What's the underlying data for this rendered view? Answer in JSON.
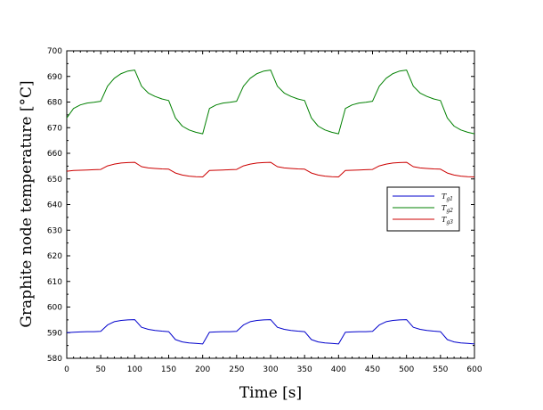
{
  "chart_data": {
    "type": "line",
    "title": "",
    "xlabel": "Time [s]",
    "ylabel_prefix": "Graphite node temperature [",
    "ylabel_unit": "°C",
    "ylabel_suffix": "]",
    "xlim": [
      0,
      600
    ],
    "ylim": [
      580,
      700
    ],
    "xticks": [
      0,
      50,
      100,
      150,
      200,
      250,
      300,
      350,
      400,
      450,
      500,
      550,
      600
    ],
    "yticks": [
      580,
      590,
      600,
      610,
      620,
      630,
      640,
      650,
      660,
      670,
      680,
      690,
      700
    ],
    "grid": false,
    "legend_position": "right",
    "series": [
      {
        "name_main": "T",
        "name_sub": "g1",
        "color": "#0000cc",
        "x": [
          0,
          10,
          20,
          30,
          40,
          50,
          60,
          70,
          80,
          90,
          100,
          110,
          120,
          130,
          140,
          150,
          160,
          170,
          180,
          190,
          200
        ],
        "y": [
          590,
          590.2,
          590.3,
          590.4,
          590.4,
          590.5,
          593,
          594.3,
          594.8,
          595,
          595.1,
          592.1,
          591.3,
          590.9,
          590.6,
          590.4,
          587.3,
          586.4,
          586,
          585.8,
          585.6
        ]
      },
      {
        "name_main": "T",
        "name_sub": "g2",
        "color": "#008000",
        "x": [
          0,
          10,
          20,
          30,
          40,
          50,
          60,
          70,
          80,
          90,
          100,
          110,
          120,
          130,
          140,
          150,
          160,
          170,
          180,
          190,
          200
        ],
        "y": [
          673.8,
          677.5,
          678.9,
          679.6,
          679.9,
          680.3,
          686.2,
          689.3,
          691.1,
          692.1,
          692.5,
          686.2,
          683.5,
          682.2,
          681.2,
          680.6,
          673.8,
          670.6,
          669.1,
          668.2,
          667.6
        ]
      },
      {
        "name_main": "T",
        "name_sub": "g3",
        "color": "#cc0000",
        "x": [
          0,
          10,
          20,
          30,
          40,
          50,
          60,
          70,
          80,
          90,
          100,
          110,
          120,
          130,
          140,
          150,
          160,
          170,
          180,
          190,
          200
        ],
        "y": [
          653,
          653.3,
          653.4,
          653.5,
          653.6,
          653.7,
          655.1,
          655.8,
          656.2,
          656.4,
          656.5,
          654.8,
          654.3,
          654.1,
          653.9,
          653.8,
          652.3,
          651.5,
          651.1,
          650.9,
          650.8
        ]
      }
    ]
  }
}
